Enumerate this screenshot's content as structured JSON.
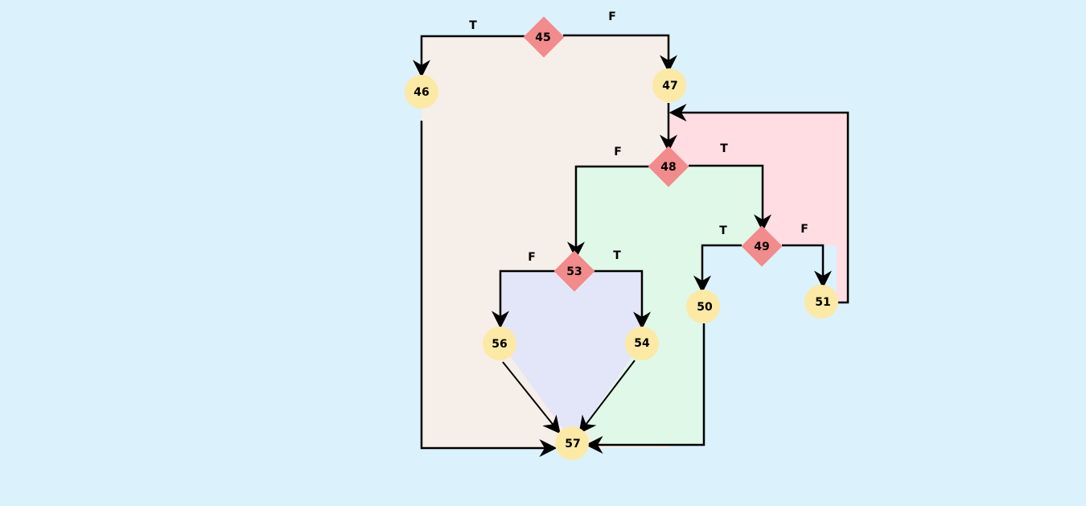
{
  "colors": {
    "background": "#dbf1fc",
    "decision": "#f28b8b",
    "process": "#fce9a6",
    "region_outer": "#f6eee8",
    "region_loop": "#ffdde2",
    "region_inner": "#dff8e8",
    "region_branch": "#e3e6f8"
  },
  "nodes": {
    "n45": {
      "label": "45",
      "kind": "decision"
    },
    "n46": {
      "label": "46",
      "kind": "process"
    },
    "n47": {
      "label": "47",
      "kind": "process"
    },
    "n48": {
      "label": "48",
      "kind": "decision"
    },
    "n49": {
      "label": "49",
      "kind": "decision"
    },
    "n50": {
      "label": "50",
      "kind": "process"
    },
    "n51": {
      "label": "51",
      "kind": "process"
    },
    "n53": {
      "label": "53",
      "kind": "decision"
    },
    "n54": {
      "label": "54",
      "kind": "process"
    },
    "n56": {
      "label": "56",
      "kind": "process"
    },
    "n57": {
      "label": "57",
      "kind": "process"
    }
  },
  "edge_labels": {
    "e45_true": "T",
    "e45_false": "F",
    "e48_false": "F",
    "e48_true": "T",
    "e49_true": "T",
    "e49_false": "F",
    "e53_false": "F",
    "e53_true": "T"
  }
}
